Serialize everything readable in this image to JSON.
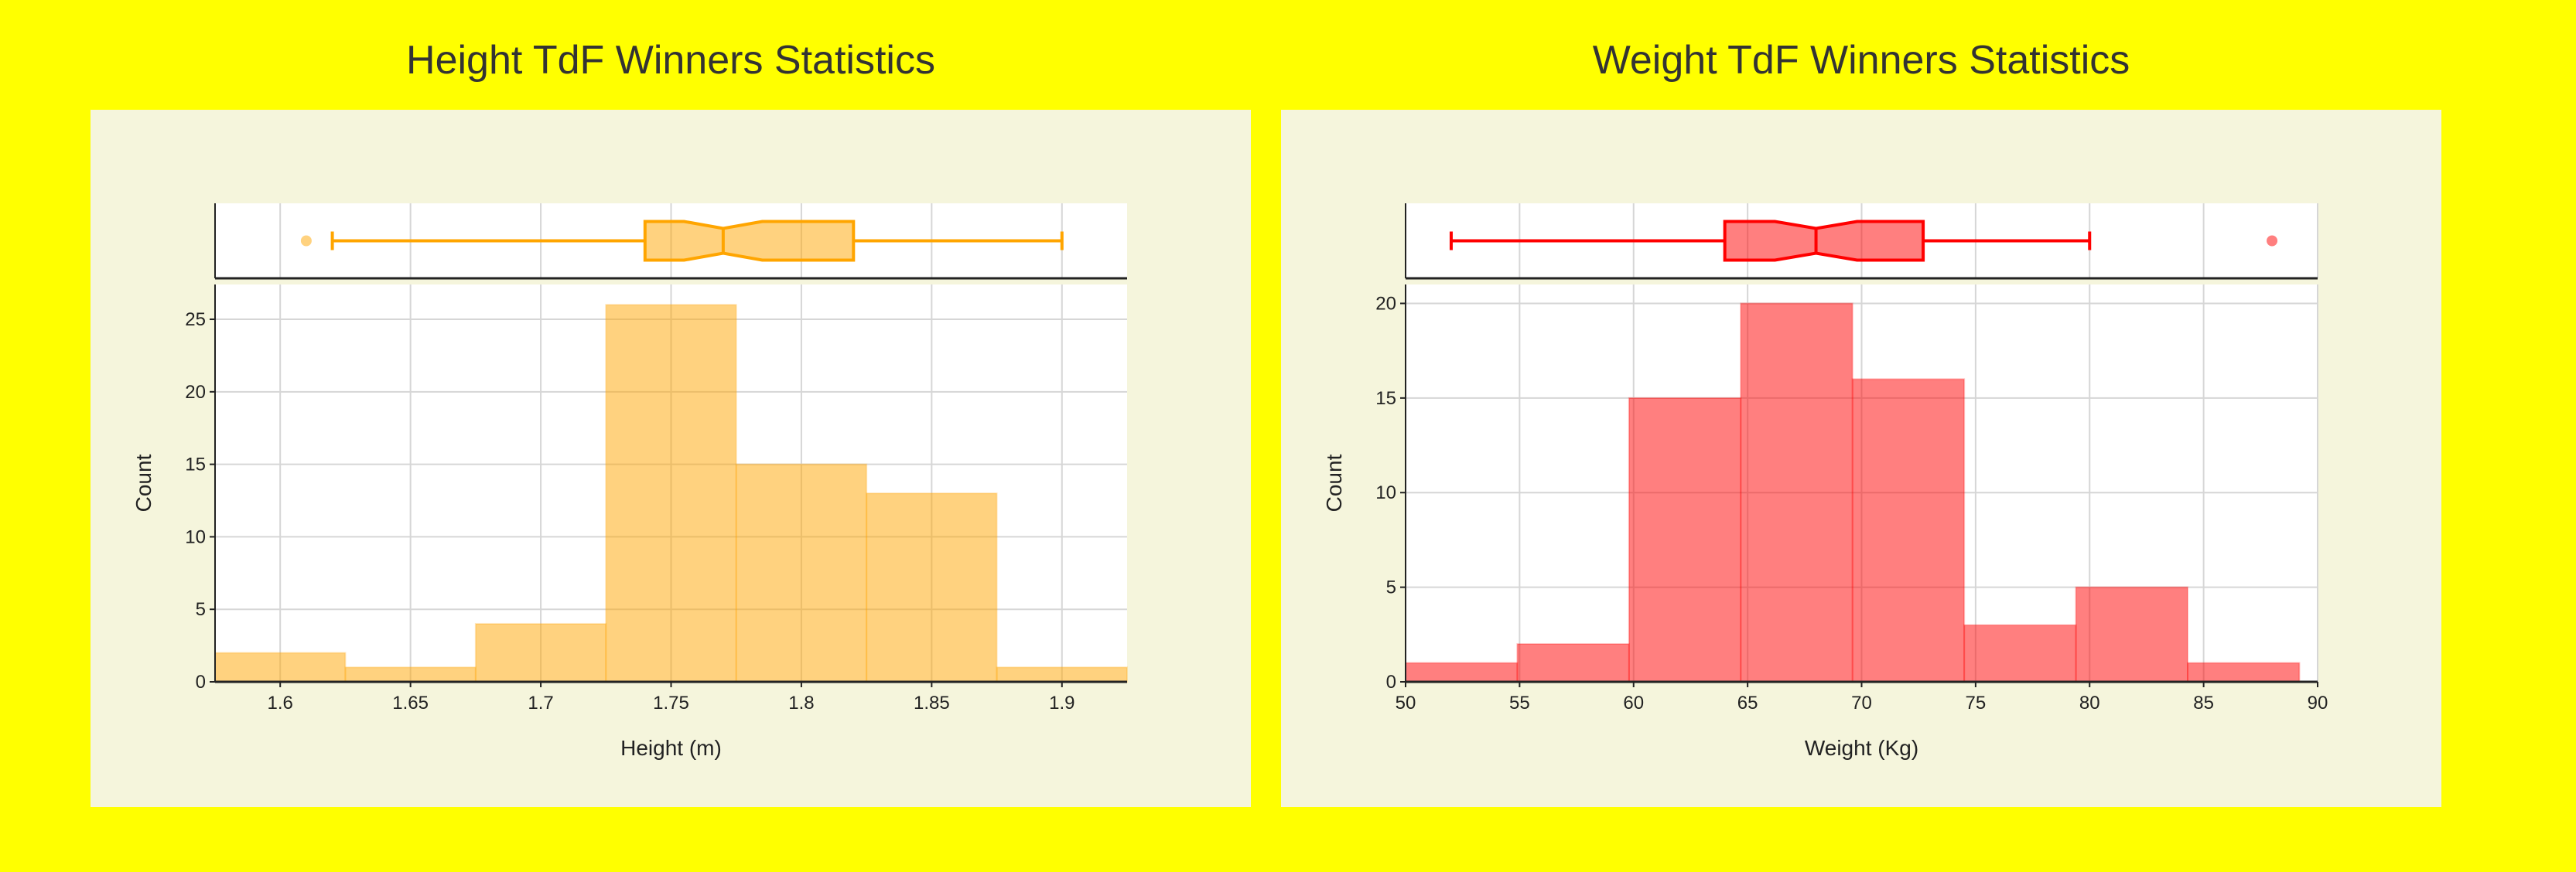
{
  "background_color": "#ffff00",
  "panel_color": "#f5f5dc",
  "chart_data": [
    {
      "type": "histogram",
      "title": "Height TdF Winners Statistics",
      "xlabel": "Height (m)",
      "ylabel": "Count",
      "color": "#ffa500",
      "xlim": [
        1.575,
        1.925
      ],
      "ylim": [
        0,
        27.4
      ],
      "xticks": [
        1.6,
        1.65,
        1.7,
        1.75,
        1.8,
        1.85,
        1.9
      ],
      "xtick_labels": [
        "1.6",
        "1.65",
        "1.7",
        "1.75",
        "1.8",
        "1.85",
        "1.9"
      ],
      "yticks": [
        0,
        5,
        10,
        15,
        20,
        25
      ],
      "ytick_labels": [
        "0",
        "5",
        "10",
        "15",
        "20",
        "25"
      ],
      "bins": [
        {
          "start": 1.575,
          "end": 1.625,
          "count": 2
        },
        {
          "start": 1.625,
          "end": 1.675,
          "count": 1
        },
        {
          "start": 1.675,
          "end": 1.725,
          "count": 4
        },
        {
          "start": 1.725,
          "end": 1.775,
          "count": 26
        },
        {
          "start": 1.775,
          "end": 1.825,
          "count": 15
        },
        {
          "start": 1.825,
          "end": 1.875,
          "count": 13
        },
        {
          "start": 1.875,
          "end": 1.925,
          "count": 1
        }
      ],
      "boxplot": {
        "min": 1.62,
        "q1": 1.74,
        "median": 1.77,
        "q3": 1.82,
        "max": 1.9,
        "notch_low": 1.755,
        "notch_high": 1.785,
        "outliers": [
          1.61
        ]
      },
      "grid": true
    },
    {
      "type": "histogram",
      "title": "Weight TdF Winners Statistics",
      "xlabel": "Weight (Kg)",
      "ylabel": "Count",
      "color": "#ff0000",
      "xlim": [
        50,
        90
      ],
      "ylim": [
        0,
        21
      ],
      "xticks": [
        50,
        55,
        60,
        65,
        70,
        75,
        80,
        85,
        90
      ],
      "xtick_labels": [
        "50",
        "55",
        "60",
        "65",
        "70",
        "75",
        "80",
        "85",
        "90"
      ],
      "yticks": [
        0,
        5,
        10,
        15,
        20
      ],
      "ytick_labels": [
        "0",
        "5",
        "10",
        "15",
        "20"
      ],
      "bins": [
        {
          "start": 50,
          "end": 54.9,
          "count": 1
        },
        {
          "start": 54.9,
          "end": 59.8,
          "count": 2
        },
        {
          "start": 59.8,
          "end": 64.7,
          "count": 15
        },
        {
          "start": 64.7,
          "end": 69.6,
          "count": 20
        },
        {
          "start": 69.6,
          "end": 74.5,
          "count": 16
        },
        {
          "start": 74.5,
          "end": 79.4,
          "count": 3
        },
        {
          "start": 79.4,
          "end": 84.3,
          "count": 5
        },
        {
          "start": 84.3,
          "end": 89.2,
          "count": 1
        }
      ],
      "boxplot": {
        "min": 52,
        "q1": 64,
        "median": 68,
        "q3": 72.7,
        "max": 80,
        "notch_low": 66.2,
        "notch_high": 69.8,
        "outliers": [
          88
        ]
      },
      "grid": true
    }
  ]
}
